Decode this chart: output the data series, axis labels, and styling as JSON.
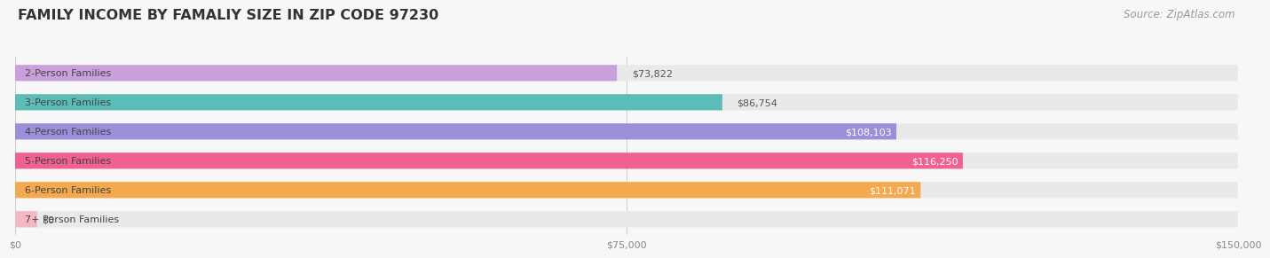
{
  "title": "FAMILY INCOME BY FAMALIY SIZE IN ZIP CODE 97230",
  "source": "Source: ZipAtlas.com",
  "categories": [
    "2-Person Families",
    "3-Person Families",
    "4-Person Families",
    "5-Person Families",
    "6-Person Families",
    "7+ Person Families"
  ],
  "values": [
    73822,
    86754,
    108103,
    116250,
    111071,
    0
  ],
  "bar_colors": [
    "#c9a0dc",
    "#5bbcb8",
    "#9b8fdb",
    "#f06090",
    "#f5a94e",
    "#f4b8c0"
  ],
  "xlim": [
    0,
    150000
  ],
  "xticks": [
    0,
    75000,
    150000
  ],
  "xtick_labels": [
    "$0",
    "$75,000",
    "$150,000"
  ],
  "value_labels": [
    "$73,822",
    "$86,754",
    "$108,103",
    "$116,250",
    "$111,071",
    "$0"
  ],
  "value_inside_threshold": 95000,
  "background_color": "#f7f7f7",
  "bar_bg_color": "#e9e9e9",
  "title_fontsize": 11.5,
  "label_fontsize": 8,
  "value_fontsize": 8,
  "source_fontsize": 8.5,
  "bar_height": 0.55,
  "rounding_size": 0.28
}
